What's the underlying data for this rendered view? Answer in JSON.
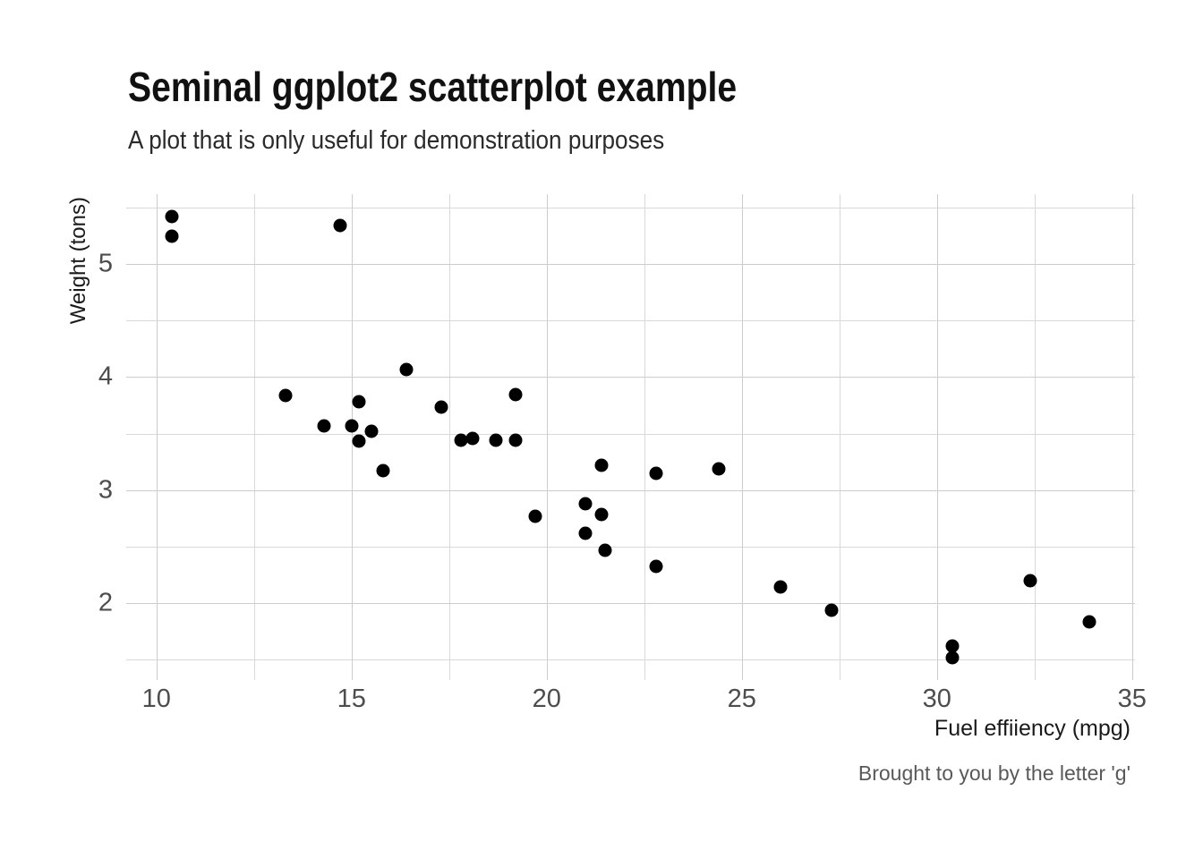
{
  "chart_data": {
    "type": "scatter",
    "title": "Seminal ggplot2 scatterplot example",
    "subtitle": "A plot that is only useful for demonstration purposes",
    "xlabel": "Fuel effiiency (mpg)",
    "ylabel": "Weight (tons)",
    "caption": "Brought to you by the letter 'g'",
    "xlim": [
      9.225,
      35.075
    ],
    "ylim": [
      1.3175,
      5.6195
    ],
    "x_ticks_major": [
      10,
      15,
      20,
      25,
      30,
      35
    ],
    "x_ticks_minor": [
      12.5,
      17.5,
      22.5,
      27.5,
      32.5
    ],
    "y_ticks_major": [
      2,
      3,
      4,
      5
    ],
    "y_ticks_minor": [
      1.5,
      2.5,
      3.5,
      4.5,
      5.5
    ],
    "grid": "major+minor",
    "legend_position": "none",
    "colors": {
      "point": "#000000",
      "grid_major": "#cccccc",
      "grid_minor": "#d9d9d9",
      "background": "#ffffff"
    },
    "points": [
      [
        21.0,
        2.62
      ],
      [
        21.0,
        2.875
      ],
      [
        22.8,
        2.32
      ],
      [
        21.4,
        3.215
      ],
      [
        18.7,
        3.44
      ],
      [
        18.1,
        3.46
      ],
      [
        14.3,
        3.57
      ],
      [
        24.4,
        3.19
      ],
      [
        22.8,
        3.15
      ],
      [
        19.2,
        3.44
      ],
      [
        17.8,
        3.44
      ],
      [
        16.4,
        4.07
      ],
      [
        17.3,
        3.73
      ],
      [
        15.2,
        3.78
      ],
      [
        10.4,
        5.25
      ],
      [
        10.4,
        5.424
      ],
      [
        14.7,
        5.345
      ],
      [
        32.4,
        2.2
      ],
      [
        30.4,
        1.615
      ],
      [
        33.9,
        1.835
      ],
      [
        21.5,
        2.465
      ],
      [
        15.5,
        3.52
      ],
      [
        15.2,
        3.435
      ],
      [
        13.3,
        3.84
      ],
      [
        19.2,
        3.845
      ],
      [
        27.3,
        1.935
      ],
      [
        26.0,
        2.14
      ],
      [
        30.4,
        1.513
      ],
      [
        15.8,
        3.17
      ],
      [
        19.7,
        2.77
      ],
      [
        15.0,
        3.57
      ],
      [
        21.4,
        2.78
      ]
    ]
  }
}
